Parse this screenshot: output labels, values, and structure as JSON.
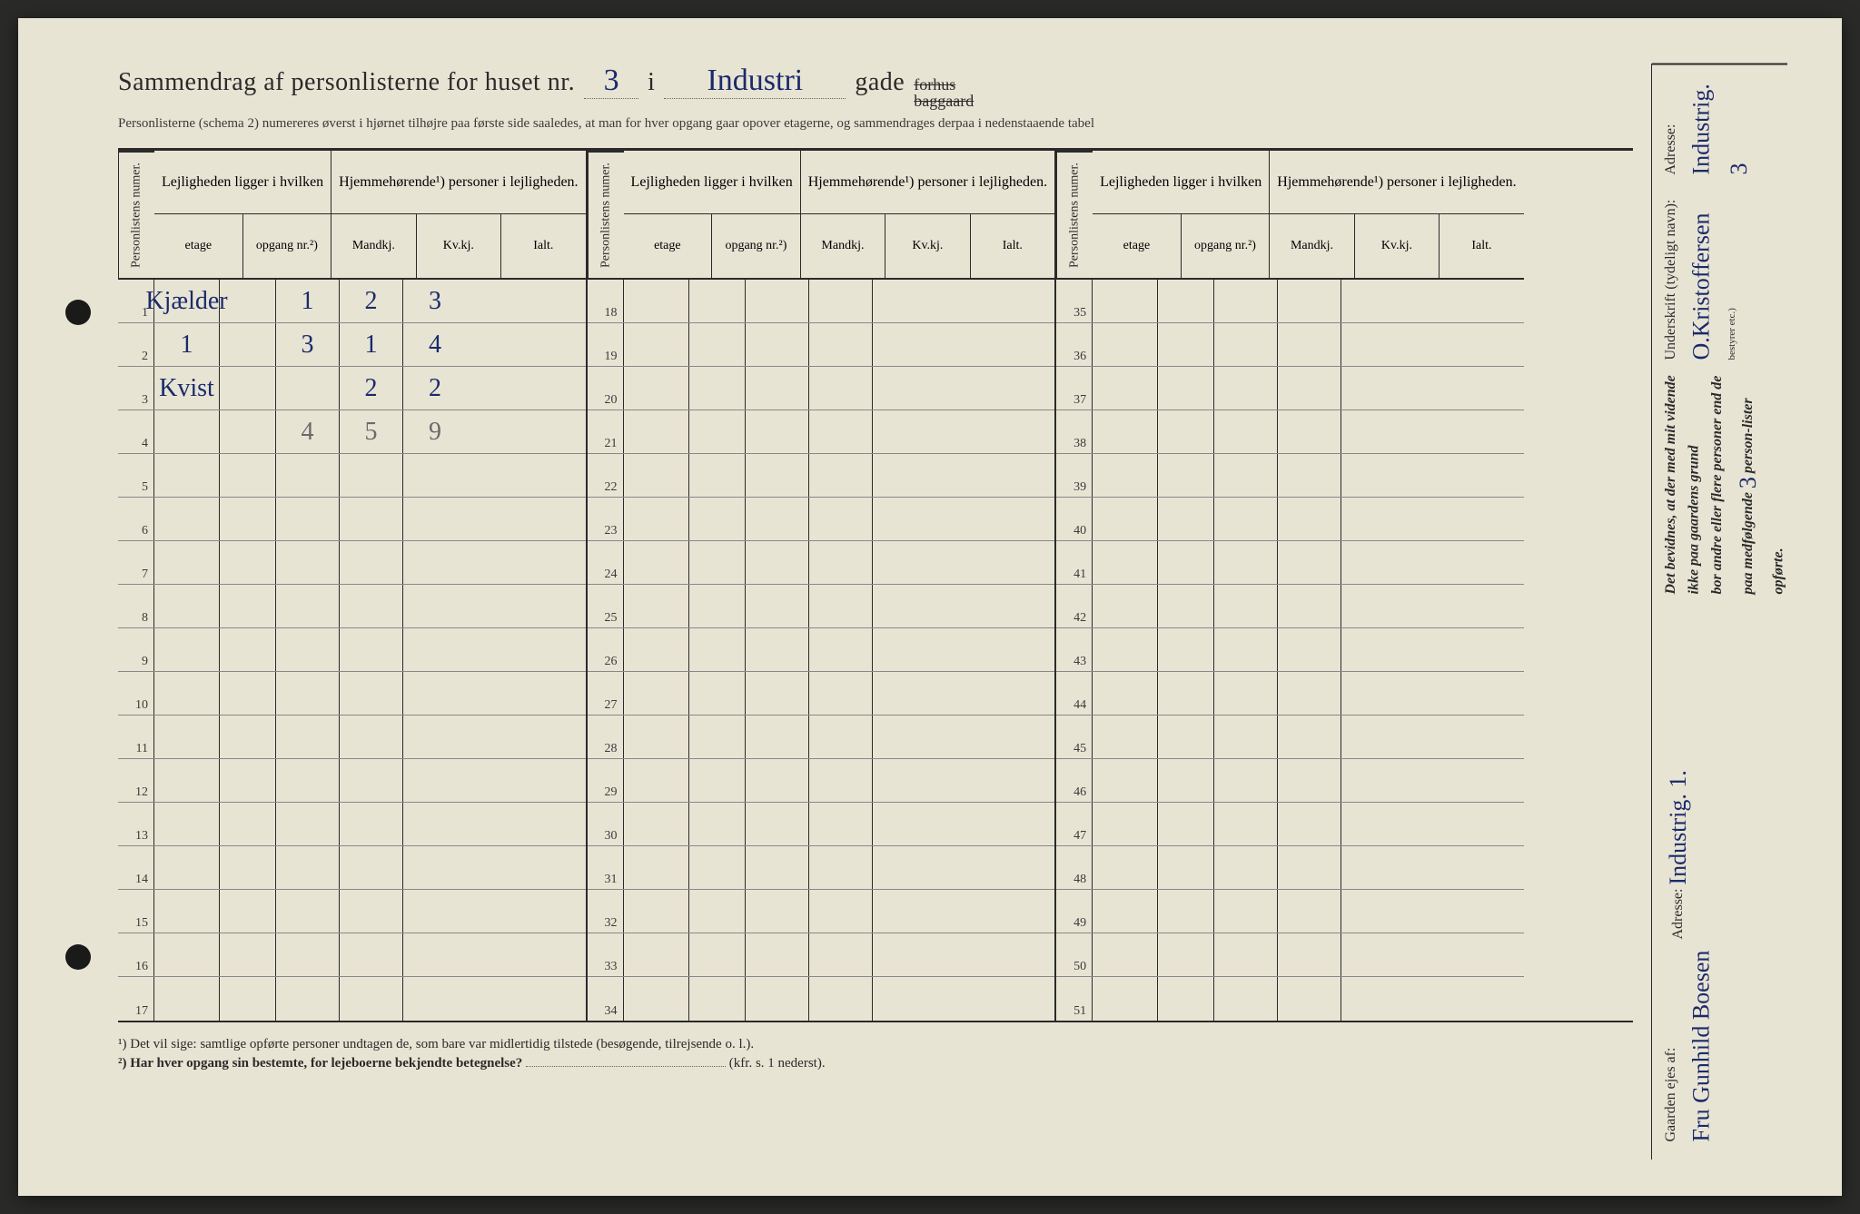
{
  "title": {
    "prefix": "Sammendrag af personlisterne for huset nr.",
    "house_nr": "3",
    "mid": "i",
    "street": "Industri",
    "suffix": "gade",
    "strike1": "forhus",
    "strike2": "baggaard"
  },
  "subtitle": "Personlisterne (schema 2) numereres øverst i hjørnet tilhøjre paa første side saaledes, at man for hver opgang gaar opover etagerne, og sammendrages derpaa i nedenstaaende tabel",
  "headers": {
    "personlist": "Personlistens numer.",
    "lejlighed": "Lejligheden ligger i hvilken",
    "hjemme": "Hjemmehørende¹) personer i lejligheden.",
    "etage": "etage",
    "opgang": "opgang nr.²)",
    "mandkj": "Mandkj.",
    "kvkj": "Kv.kj.",
    "ialt": "Ialt."
  },
  "rows_section1": [
    {
      "n": "1",
      "etage": "Kjælder",
      "op": "",
      "m": "1",
      "k": "2",
      "i": "3"
    },
    {
      "n": "2",
      "etage": "1",
      "op": "",
      "m": "3",
      "k": "1",
      "i": "4"
    },
    {
      "n": "3",
      "etage": "Kvist",
      "op": "",
      "m": "",
      "k": "2",
      "i": "2"
    },
    {
      "n": "4",
      "etage": "",
      "op": "",
      "m": "4",
      "k": "5",
      "i": "9",
      "pencil": true
    },
    {
      "n": "5"
    },
    {
      "n": "6"
    },
    {
      "n": "7"
    },
    {
      "n": "8"
    },
    {
      "n": "9"
    },
    {
      "n": "10"
    },
    {
      "n": "11"
    },
    {
      "n": "12"
    },
    {
      "n": "13"
    },
    {
      "n": "14"
    },
    {
      "n": "15"
    },
    {
      "n": "16"
    },
    {
      "n": "17"
    }
  ],
  "rows_section2": [
    {
      "n": "18"
    },
    {
      "n": "19"
    },
    {
      "n": "20"
    },
    {
      "n": "21"
    },
    {
      "n": "22"
    },
    {
      "n": "23"
    },
    {
      "n": "24"
    },
    {
      "n": "25"
    },
    {
      "n": "26"
    },
    {
      "n": "27"
    },
    {
      "n": "28"
    },
    {
      "n": "29"
    },
    {
      "n": "30"
    },
    {
      "n": "31"
    },
    {
      "n": "32"
    },
    {
      "n": "33"
    },
    {
      "n": "34"
    }
  ],
  "rows_section3": [
    {
      "n": "35"
    },
    {
      "n": "36"
    },
    {
      "n": "37"
    },
    {
      "n": "38"
    },
    {
      "n": "39"
    },
    {
      "n": "40"
    },
    {
      "n": "41"
    },
    {
      "n": "42"
    },
    {
      "n": "43"
    },
    {
      "n": "44"
    },
    {
      "n": "45"
    },
    {
      "n": "46"
    },
    {
      "n": "47"
    },
    {
      "n": "48"
    },
    {
      "n": "49"
    },
    {
      "n": "50"
    },
    {
      "n": "51"
    }
  ],
  "footnotes": {
    "f1": "¹)   Det vil sige: samtlige opførte personer undtagen de, som bare var midlertidig tilstede (besøgende, tilrejsende o. l.).",
    "f2_q": "²)   Har hver opgang sin bestemte, for lejeboerne bekjendte betegnelse?",
    "f2_ref": "(kfr. s. 1 nederst)."
  },
  "side": {
    "attest1": "Det bevidnes, at der med mit vidende ikke paa gaardens grund",
    "attest2": "bor andre eller flere personer end de paa medfølgende",
    "attest_count": "3",
    "attest3": "person-lister opførte.",
    "underskrift_label": "Underskrift (tydeligt navn):",
    "underskrift": "O.Kristoffersen",
    "bestyrer": "bestyrer etc.)",
    "adresse_label": "Adresse:",
    "adresse1": "Industrig. 3",
    "owner_label": "Gaarden ejes af:",
    "owner": "Fru Gunhild Boesen",
    "adresse2": "Industrig. 1."
  },
  "colors": {
    "paper": "#e8e4d4",
    "ink_print": "#2a2a2a",
    "ink_hand": "#1a2a6b",
    "pencil": "#6a6a6a"
  }
}
